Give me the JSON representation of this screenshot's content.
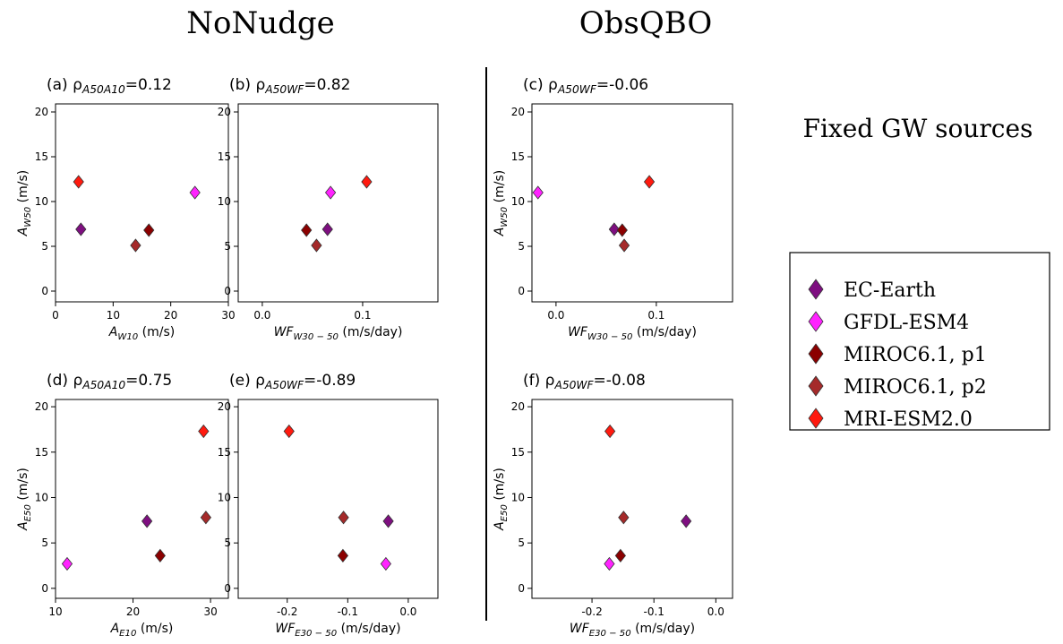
{
  "headers": [
    "NoNudge",
    "ObsQBO"
  ],
  "side_label": "Fixed GW sources",
  "models": [
    {
      "name": "EC-Earth",
      "color": "#7e0f80"
    },
    {
      "name": "GFDL-ESM4",
      "color": "#ff22ff"
    },
    {
      "name": "MIROC6.1, p1",
      "color": "#8b0000"
    },
    {
      "name": "MIROC6.1, p2",
      "color": "#a52a2a"
    },
    {
      "name": "MRI-ESM2.0",
      "color": "#ff1a0f"
    }
  ],
  "chart_data": [
    {
      "type": "scatter",
      "title": {
        "text": "(a) ρ",
        "subscript": "A50A10",
        "suffix": "=0.12"
      },
      "xlabel": {
        "text": "A",
        "subscript": "W10",
        "suffix": " (m/s)"
      },
      "ylabel": {
        "text": "A",
        "subscript": "W50",
        "suffix": " (m/s)"
      },
      "x": [
        4.4,
        24.2,
        16.2,
        13.9,
        4.0
      ],
      "values": [
        6.9,
        11.0,
        6.8,
        5.1,
        12.2
      ],
      "xlim": [
        0,
        30
      ],
      "xticks": [
        0,
        10,
        20,
        30
      ],
      "ylim": [
        -1.2,
        20.9
      ],
      "yticks": [
        0,
        5,
        10,
        15,
        20
      ]
    },
    {
      "type": "scatter",
      "title": {
        "text": "(b) ρ",
        "subscript": "A50WF",
        "suffix": "=0.82"
      },
      "xlabel": {
        "text": "WF",
        "subscript": "W30 − 50",
        "suffix": " (m/s/day)"
      },
      "x": [
        0.065,
        0.068,
        0.044,
        0.054,
        0.104
      ],
      "values": [
        6.9,
        11.0,
        6.8,
        5.1,
        12.2
      ],
      "xlim": [
        -0.024,
        0.175
      ],
      "xticks": [
        {
          "value": 0,
          "label": "0.0"
        },
        0.1
      ],
      "ylim": [
        -1.2,
        20.9
      ],
      "yticks": [
        0,
        5,
        10,
        15,
        20
      ]
    },
    {
      "type": "scatter",
      "title": {
        "text": "(c) ρ",
        "subscript": "A50WF",
        "suffix": "=-0.06"
      },
      "xlabel": {
        "text": "WF",
        "subscript": "W30 − 50",
        "suffix": " (m/s/day)"
      },
      "ylabel": {
        "text": "A",
        "subscript": "W50",
        "suffix": " (m/s)"
      },
      "x": [
        0.058,
        -0.018,
        0.066,
        0.068,
        0.093
      ],
      "values": [
        6.9,
        11.0,
        6.8,
        5.1,
        12.2
      ],
      "xlim": [
        -0.024,
        0.176
      ],
      "xticks": [
        {
          "value": 0,
          "label": "0.0"
        },
        0.1
      ],
      "ylim": [
        -1.2,
        20.9
      ],
      "yticks": [
        0,
        5,
        10,
        15,
        20
      ]
    },
    {
      "type": "scatter",
      "title": {
        "text": "(d) ρ",
        "subscript": "A50A10",
        "suffix": "=0.75"
      },
      "xlabel": {
        "text": "A",
        "subscript": "E10",
        "suffix": " (m/s)"
      },
      "ylabel": {
        "text": "A",
        "subscript": "E50",
        "suffix": " (m/s)"
      },
      "x": [
        21.8,
        11.5,
        23.5,
        29.4,
        29.1
      ],
      "values": [
        7.4,
        2.7,
        3.6,
        7.8,
        17.3
      ],
      "xlim": [
        10,
        32.3
      ],
      "xticks": [
        10,
        20,
        30
      ],
      "ylim": [
        -1.1,
        20.8
      ],
      "yticks": [
        0,
        5,
        10,
        15,
        20
      ]
    },
    {
      "type": "scatter",
      "title": {
        "text": "(e) ρ",
        "subscript": "A50WF",
        "suffix": "=-0.89"
      },
      "xlabel": {
        "text": "WF",
        "subscript": "E30 − 50",
        "suffix": " (m/s/day)"
      },
      "x": [
        -0.033,
        -0.037,
        -0.108,
        -0.107,
        -0.197
      ],
      "values": [
        7.4,
        2.7,
        3.6,
        7.8,
        17.3
      ],
      "xlim": [
        -0.281,
        0.049
      ],
      "xticks": [
        -0.2,
        -0.1,
        {
          "value": 0,
          "label": "0.0"
        }
      ],
      "ylim": [
        -1.1,
        20.8
      ],
      "yticks": [
        0,
        5,
        10,
        15,
        20
      ]
    },
    {
      "type": "scatter",
      "title": {
        "text": "(f) ρ",
        "subscript": "A50WF",
        "suffix": "=-0.08"
      },
      "xlabel": {
        "text": "WF",
        "subscript": "E30 − 50",
        "suffix": " (m/s/day)"
      },
      "ylabel": {
        "text": "A",
        "subscript": "E50",
        "suffix": " (m/s)"
      },
      "x": [
        -0.048,
        -0.172,
        -0.154,
        -0.149,
        -0.171
      ],
      "values": [
        7.4,
        2.7,
        3.6,
        7.8,
        17.3
      ],
      "xlim": [
        -0.297,
        0.027
      ],
      "xticks": [
        -0.2,
        -0.1,
        {
          "value": 0,
          "label": "0.0"
        }
      ],
      "ylim": [
        -1.1,
        20.8
      ],
      "yticks": [
        0,
        5,
        10,
        15,
        20
      ]
    }
  ]
}
